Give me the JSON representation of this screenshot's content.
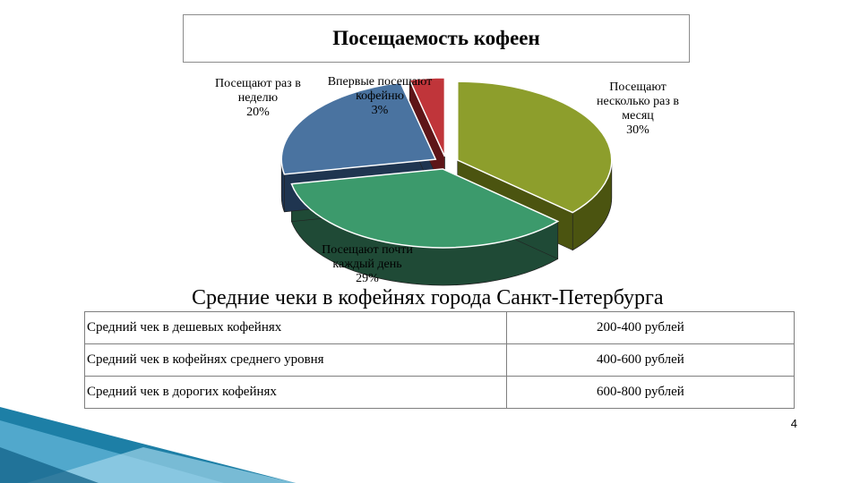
{
  "slide": {
    "page_number": "4"
  },
  "chart_data": {
    "type": "pie",
    "title": "Посещаемость кофеен",
    "slices": [
      {
        "label": "Посещают несколько раз в месяц",
        "value": 30,
        "display": "Посещают\nнесколько раз в\nмесяц\n30%",
        "color": "#8d9e2c",
        "side_color": "#4b5410"
      },
      {
        "label": "Посещают почти каждый день",
        "value": 29,
        "display": "Посещают почти\nкаждый день\n29%",
        "color": "#3c9a6c",
        "side_color": "#1f4a36"
      },
      {
        "label": "Посещают раз в неделю",
        "value": 20,
        "display": "Посещают раз в\nнеделю\n20%",
        "color": "#4a73a0",
        "side_color": "#1f3550"
      },
      {
        "label": "Впервые посещают кофейню",
        "value": 3,
        "display": "Впервые посещают\nкофейню\n3%",
        "color": "#c0353a",
        "side_color": "#5e1518"
      }
    ]
  },
  "table": {
    "title": "Средние чеки в кофейнях города Санкт-Петербурга",
    "rows": [
      {
        "label": "Средний чек в дешевых кофейнях",
        "value": "200-400 рублей"
      },
      {
        "label": "Средний чек в кофейнях среднего уровня",
        "value": "400-600 рублей"
      },
      {
        "label": "Средний чек в дорогих кофейнях",
        "value": "600-800 рублей"
      }
    ]
  }
}
